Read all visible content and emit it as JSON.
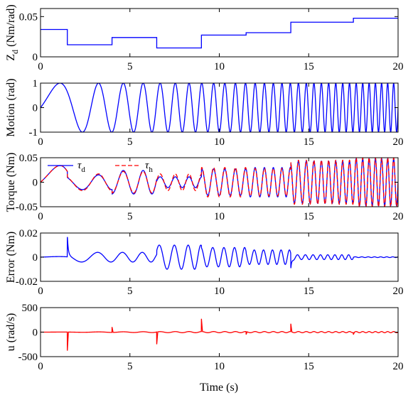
{
  "figure": {
    "xlabel": "Time (s)",
    "colors": {
      "blue": "#0000ff",
      "red": "#ff0000",
      "axis": "#000000"
    }
  },
  "chart_data": [
    {
      "type": "line",
      "ylabel": "Z_d (Nm/rad)",
      "ylabel_main": "Z",
      "ylabel_sub": "d",
      "ylabel_rest": " (Nm/rad)",
      "xlim": [
        0,
        20
      ],
      "ylim": [
        0,
        0.06
      ],
      "xticks": [
        0,
        5,
        10,
        15,
        20
      ],
      "xtick_labels": [
        "0",
        "5",
        "10",
        "15",
        "20"
      ],
      "yticks": [
        0,
        0.05
      ],
      "ytick_labels": [
        "0",
        "0.05"
      ],
      "series": [
        {
          "color": "#0000ff",
          "step": true,
          "x": [
            0,
            1.5,
            1.5,
            4.0,
            4.0,
            6.5,
            6.5,
            9.0,
            9.0,
            11.5,
            11.5,
            14.0,
            14.0,
            17.5,
            17.5,
            20
          ],
          "y": [
            0.034,
            0.034,
            0.015,
            0.015,
            0.024,
            0.024,
            0.011,
            0.011,
            0.027,
            0.027,
            0.03,
            0.03,
            0.043,
            0.043,
            0.048,
            0.048
          ]
        }
      ]
    },
    {
      "type": "line",
      "ylabel": "Motion (rad)",
      "xlim": [
        0,
        20
      ],
      "ylim": [
        -1,
        1
      ],
      "xticks": [
        0,
        5,
        10,
        15,
        20
      ],
      "xtick_labels": [
        "0",
        "5",
        "10",
        "15",
        "20"
      ],
      "yticks": [
        -1,
        0,
        1
      ],
      "ytick_labels": [
        "-1",
        "0",
        "1"
      ],
      "series": [
        {
          "color": "#0000ff",
          "model": "chirp",
          "amplitude": 1,
          "f0": 0.15,
          "k": 0.145
        }
      ]
    },
    {
      "type": "line",
      "ylabel": "Torque (Nm)",
      "xlim": [
        0,
        20
      ],
      "ylim": [
        -0.05,
        0.05
      ],
      "xticks": [
        0,
        5,
        10,
        15,
        20
      ],
      "xtick_labels": [
        "0",
        "5",
        "10",
        "15",
        "20"
      ],
      "yticks": [
        -0.05,
        0,
        0.05
      ],
      "ytick_labels": [
        "-0.05",
        "0",
        "0.05"
      ],
      "legend": {
        "position": "top-left",
        "entries": [
          "τ_d",
          "τ_h"
        ]
      },
      "legend_labels": [
        {
          "main": "τ",
          "sub": "d"
        },
        {
          "main": "τ",
          "sub": "h"
        }
      ],
      "series": [
        {
          "name": "τ_d",
          "color": "#0000ff",
          "dash": false,
          "model": "torque",
          "segments": [
            {
              "start": 0,
              "end": 1.5,
              "amplitude": 0.034
            },
            {
              "start": 1.5,
              "end": 4.0,
              "amplitude": 0.015
            },
            {
              "start": 4.0,
              "end": 6.5,
              "amplitude": 0.024
            },
            {
              "start": 6.5,
              "end": 9.0,
              "amplitude": 0.011
            },
            {
              "start": 9.0,
              "end": 11.5,
              "amplitude": 0.027
            },
            {
              "start": 11.5,
              "end": 14.0,
              "amplitude": 0.03
            },
            {
              "start": 14.0,
              "end": 17.5,
              "amplitude": 0.043
            },
            {
              "start": 17.5,
              "end": 20,
              "amplitude": 0.048
            }
          ]
        },
        {
          "name": "τ_h",
          "color": "#ff0000",
          "dash": true,
          "model": "torque",
          "segments": [
            {
              "start": 0,
              "end": 1.5,
              "amplitude": 0.034
            },
            {
              "start": 1.5,
              "end": 4.0,
              "amplitude": 0.017
            },
            {
              "start": 4.0,
              "end": 6.5,
              "amplitude": 0.022
            },
            {
              "start": 6.5,
              "end": 9.0,
              "amplitude": 0.017
            },
            {
              "start": 9.0,
              "end": 11.5,
              "amplitude": 0.03
            },
            {
              "start": 11.5,
              "end": 14.0,
              "amplitude": 0.028
            },
            {
              "start": 14.0,
              "end": 17.5,
              "amplitude": 0.045
            },
            {
              "start": 17.5,
              "end": 20,
              "amplitude": 0.05
            }
          ]
        }
      ]
    },
    {
      "type": "line",
      "ylabel": "Error (Nm)",
      "xlim": [
        0,
        20
      ],
      "ylim": [
        -0.02,
        0.02
      ],
      "xticks": [
        0,
        5,
        10,
        15,
        20
      ],
      "xtick_labels": [
        "0",
        "5",
        "10",
        "15",
        "20"
      ],
      "yticks": [
        -0.02,
        0,
        0.02
      ],
      "ytick_labels": [
        "-0.02",
        "0",
        "0.02"
      ],
      "series": [
        {
          "color": "#0000ff",
          "model": "error",
          "segments": [
            {
              "start": 0,
              "end": 1.5,
              "amplitude": 0.0005
            },
            {
              "start": 1.5,
              "end": 4.0,
              "amplitude": 0.004
            },
            {
              "start": 4.0,
              "end": 6.5,
              "amplitude": 0.004
            },
            {
              "start": 6.5,
              "end": 9.0,
              "amplitude": 0.01
            },
            {
              "start": 9.0,
              "end": 11.5,
              "amplitude": 0.008
            },
            {
              "start": 11.5,
              "end": 14.0,
              "amplitude": 0.006
            },
            {
              "start": 14.0,
              "end": 17.5,
              "amplitude": 0.002
            },
            {
              "start": 17.5,
              "end": 20,
              "amplitude": 0.0003
            }
          ],
          "spikes": [
            {
              "x": 1.5,
              "y": 0.016
            },
            {
              "x": 14.0,
              "y": -0.011
            }
          ]
        }
      ]
    },
    {
      "type": "line",
      "ylabel": "u (rad/s)",
      "xlabel": "Time (s)",
      "xlim": [
        0,
        20
      ],
      "ylim": [
        -500,
        500
      ],
      "xticks": [
        0,
        5,
        10,
        15,
        20
      ],
      "xtick_labels": [
        "0",
        "5",
        "10",
        "15",
        "20"
      ],
      "yticks": [
        -500,
        0,
        500
      ],
      "ytick_labels": [
        "-500",
        "0",
        "500"
      ],
      "series": [
        {
          "color": "#ff0000",
          "model": "control",
          "ripple_amplitude": 12,
          "spikes": [
            {
              "x": 1.5,
              "y": -380
            },
            {
              "x": 4.0,
              "y": 110
            },
            {
              "x": 6.5,
              "y": -250
            },
            {
              "x": 9.0,
              "y": 260
            },
            {
              "x": 11.5,
              "y": -60
            },
            {
              "x": 14.0,
              "y": 160
            },
            {
              "x": 17.5,
              "y": -40
            }
          ]
        }
      ]
    }
  ]
}
